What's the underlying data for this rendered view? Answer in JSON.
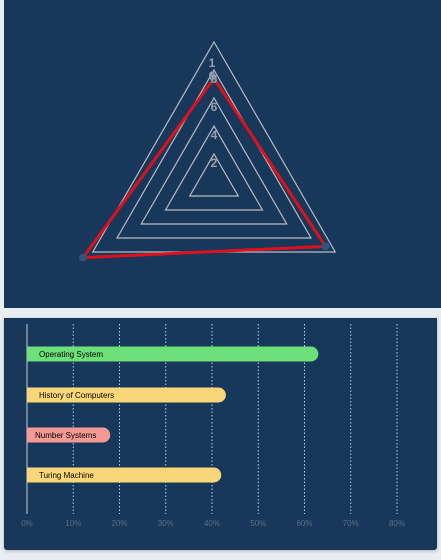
{
  "chart_data": [
    {
      "type": "radar",
      "axes": [
        "",
        "",
        ""
      ],
      "ticks": [
        "2",
        "4",
        "6",
        "8",
        "10"
      ],
      "rmax": 10,
      "series": [
        {
          "values": [
            7.4,
            9.2,
            10.8
          ],
          "color": "#e0101a"
        }
      ],
      "grid_color": "#b8bcc2",
      "tick_color": "#9aa0a8",
      "point_color": "#2e5680"
    },
    {
      "type": "bar",
      "orientation": "horizontal",
      "categories": [
        "Operating System",
        "History of Computers",
        "Number Systems",
        "Turing Machine"
      ],
      "values": [
        0.63,
        0.43,
        0.18,
        0.42
      ],
      "bar_colors": [
        "#6de07a",
        "#f9d778",
        "#f49a95",
        "#f9d778"
      ],
      "xticks": [
        "0%",
        "10%",
        "20%",
        "30%",
        "40%",
        "50%",
        "60%",
        "70%",
        "80%"
      ],
      "xlim": [
        0,
        0.8
      ],
      "grid": "vertical dotted"
    }
  ]
}
